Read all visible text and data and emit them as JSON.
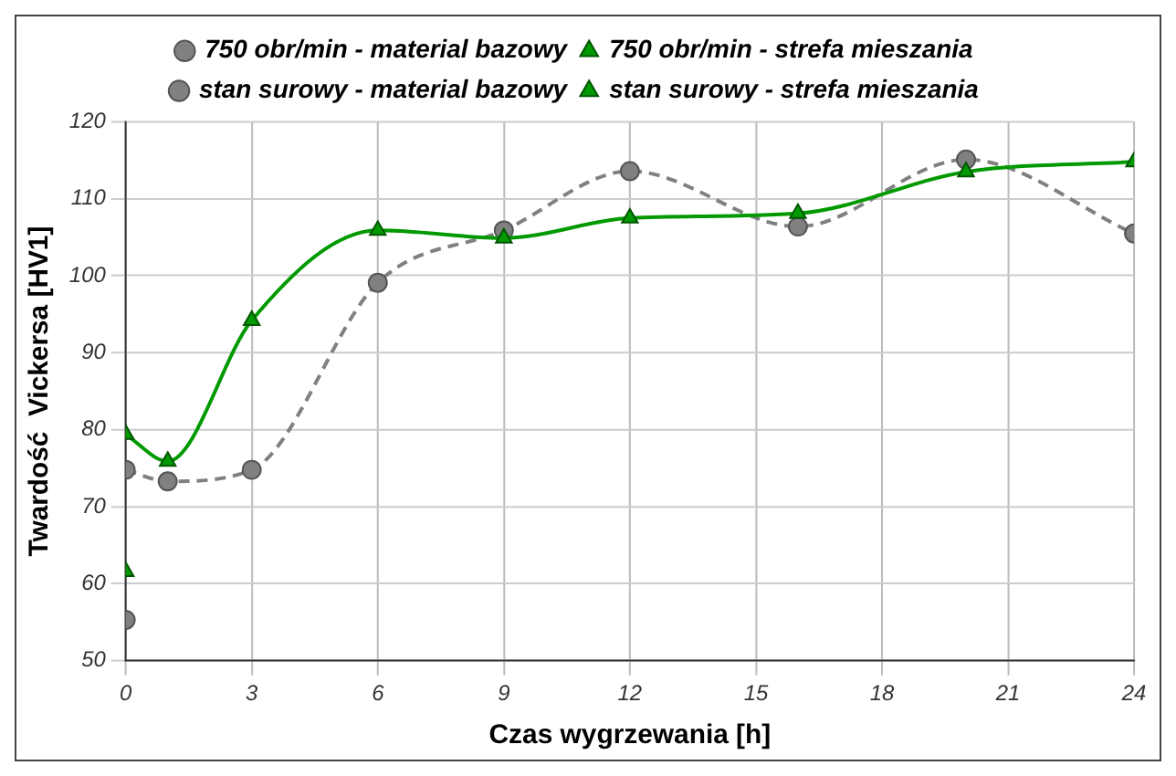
{
  "chart_data": {
    "type": "line",
    "xlabel": "Czas wygrzewania [h]",
    "ylabel": "Twardość  Vickersa [HV1]",
    "xlim": [
      0,
      24
    ],
    "xticks": [
      0,
      3,
      6,
      9,
      12,
      15,
      18,
      21,
      24
    ],
    "ylim": [
      50,
      120
    ],
    "yticks": [
      50,
      60,
      70,
      80,
      90,
      100,
      110,
      120
    ],
    "grid": true,
    "legend": "top",
    "series": [
      {
        "name": "750 obr/min - material bazowy",
        "color": "#808080",
        "type": "line",
        "marker": "circle",
        "line_style": "dashed",
        "x": [
          0,
          1,
          3,
          6,
          9,
          12,
          16,
          20,
          24
        ],
        "values": [
          74.8,
          73.3,
          74.8,
          99.1,
          105.9,
          113.6,
          106.4,
          115.1,
          105.5
        ]
      },
      {
        "name": "750 obr/min - strefa mieszania",
        "color": "#009900",
        "type": "line",
        "marker": "triangle",
        "line_style": "solid",
        "x": [
          0,
          1,
          3,
          6,
          9,
          12,
          16,
          20,
          24
        ],
        "values": [
          79.4,
          75.9,
          94.2,
          105.9,
          104.9,
          107.5,
          108.1,
          113.5,
          114.8
        ]
      },
      {
        "name": "stan surowy - material bazowy",
        "color": "#808080",
        "type": "scatter",
        "marker": "circle",
        "x": [
          0
        ],
        "values": [
          55.3
        ]
      },
      {
        "name": "stan surowy - strefa mieszania",
        "color": "#009900",
        "type": "scatter",
        "marker": "triangle",
        "x": [
          0
        ],
        "values": [
          61.6
        ]
      }
    ]
  }
}
